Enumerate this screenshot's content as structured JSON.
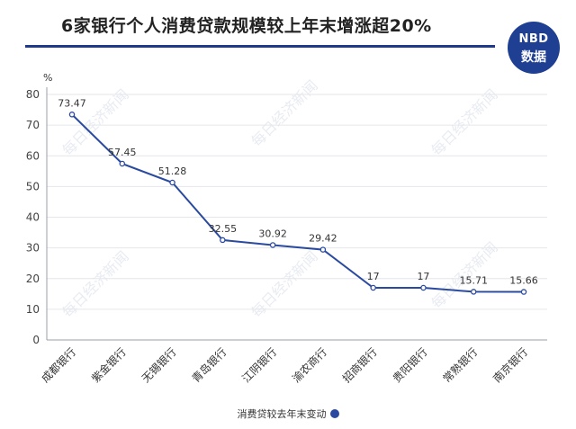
{
  "title": "6家银行个人消费贷款规模较上年末增涨超20%",
  "badge": {
    "line1": "NBD",
    "line2": "数据"
  },
  "watermark": "每日经济新闻",
  "colors": {
    "line": "#2a4aa0",
    "title_rule": "#1f3a8a",
    "badge_bg": "#1e3f92"
  },
  "chart_data": {
    "type": "line",
    "ylabel": "%",
    "ylim": [
      0,
      80
    ],
    "yticks": [
      0,
      10,
      20,
      30,
      40,
      50,
      60,
      70,
      80
    ],
    "grid": true,
    "legend_position": "bottom",
    "categories": [
      "成都银行",
      "紫金银行",
      "无锡银行",
      "青岛银行",
      "江阴银行",
      "渝农商行",
      "招商银行",
      "贵阳银行",
      "常熟银行",
      "南京银行"
    ],
    "series": [
      {
        "name": "消费贷较去年末变动",
        "values": [
          73.47,
          57.45,
          51.28,
          32.55,
          30.92,
          29.42,
          17,
          17,
          15.71,
          15.66
        ],
        "labels": [
          "73.47",
          "57.45",
          "51.28",
          "32.55",
          "30.92",
          "29.42",
          "17",
          "17",
          "15.71",
          "15.66"
        ]
      }
    ]
  }
}
